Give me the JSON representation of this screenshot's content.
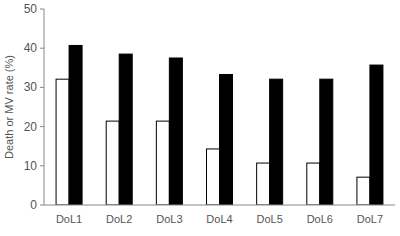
{
  "chart_data": {
    "type": "bar",
    "y_label": "Death or MV rate (%)",
    "categories": [
      "DoL1",
      "DoL2",
      "DoL3",
      "DoL4",
      "DoL5",
      "DoL6",
      "DoL7"
    ],
    "series": [
      {
        "color": "#ffffff",
        "values": [
          32.1,
          21.4,
          21.4,
          14.3,
          10.7,
          10.7,
          7.1
        ]
      },
      {
        "color": "#000000",
        "values": [
          40.7,
          38.5,
          37.5,
          33.3,
          32.1,
          32.1,
          35.7
        ]
      }
    ],
    "ylim": [
      0,
      50
    ],
    "yticks": [
      0,
      10,
      20,
      30,
      40,
      50
    ],
    "grid": false
  }
}
